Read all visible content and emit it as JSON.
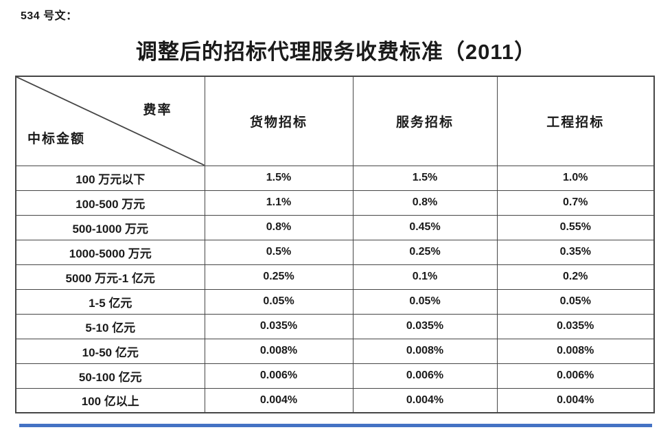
{
  "doc_label": "534 号文：",
  "title": "调整后的招标代理服务收费标准（2011）",
  "table": {
    "corner": {
      "top_right": "费率",
      "bottom_left": "中标金额"
    },
    "columns": [
      "货物招标",
      "服务招标",
      "工程招标"
    ],
    "rows": [
      {
        "label": "100 万元以下",
        "values": [
          "1.5%",
          "1.5%",
          "1.0%"
        ]
      },
      {
        "label": "100-500 万元",
        "values": [
          "1.1%",
          "0.8%",
          "0.7%"
        ]
      },
      {
        "label": "500-1000 万元",
        "values": [
          "0.8%",
          "0.45%",
          "0.55%"
        ]
      },
      {
        "label": "1000-5000 万元",
        "values": [
          "0.5%",
          "0.25%",
          "0.35%"
        ]
      },
      {
        "label": "5000 万元-1 亿元",
        "values": [
          "0.25%",
          "0.1%",
          "0.2%"
        ]
      },
      {
        "label": "1-5 亿元",
        "values": [
          "0.05%",
          "0.05%",
          "0.05%"
        ]
      },
      {
        "label": "5-10 亿元",
        "values": [
          "0.035%",
          "0.035%",
          "0.035%"
        ]
      },
      {
        "label": "10-50 亿元",
        "values": [
          "0.008%",
          "0.008%",
          "0.008%"
        ]
      },
      {
        "label": "50-100 亿元",
        "values": [
          "0.006%",
          "0.006%",
          "0.006%"
        ]
      },
      {
        "label": "100 亿以上",
        "values": [
          "0.004%",
          "0.004%",
          "0.004%"
        ]
      }
    ]
  },
  "colors": {
    "accent_rule": "#4472c4",
    "border": "#454545",
    "text": "#1a1a1a"
  }
}
